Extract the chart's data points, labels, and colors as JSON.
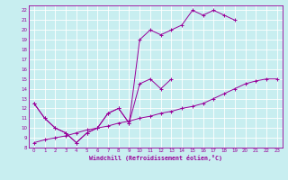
{
  "xlabel": "Windchill (Refroidissement éolien,°C)",
  "bg_color": "#c8eef0",
  "grid_color": "#ffffff",
  "line_color": "#990099",
  "xlim": [
    -0.5,
    23.5
  ],
  "ylim": [
    8,
    22.5
  ],
  "xticks": [
    0,
    1,
    2,
    3,
    4,
    5,
    6,
    7,
    8,
    9,
    10,
    11,
    12,
    13,
    14,
    15,
    16,
    17,
    18,
    19,
    20,
    21,
    22,
    23
  ],
  "yticks": [
    8,
    9,
    10,
    11,
    12,
    13,
    14,
    15,
    16,
    17,
    18,
    19,
    20,
    21,
    22
  ],
  "line1_x": [
    0,
    1,
    2,
    3,
    4,
    5,
    6,
    7,
    8,
    9,
    10,
    11,
    12,
    13,
    14,
    15,
    16,
    17,
    18,
    19
  ],
  "line1_y": [
    12.5,
    11.0,
    10.0,
    9.5,
    8.5,
    9.5,
    10.0,
    11.5,
    12.0,
    10.5,
    19.0,
    20.0,
    19.5,
    20.0,
    20.5,
    22.0,
    21.5,
    22.0,
    21.5,
    21.0
  ],
  "line2_x": [
    0,
    1,
    2,
    3,
    4,
    5,
    6,
    7,
    8,
    9,
    10,
    11,
    12,
    13
  ],
  "line2_y": [
    12.5,
    11.0,
    10.0,
    9.5,
    8.5,
    9.5,
    10.0,
    11.5,
    12.0,
    10.5,
    14.5,
    15.0,
    14.0,
    15.0
  ],
  "line3_x": [
    0,
    1,
    2,
    3,
    4,
    5,
    6,
    7,
    8,
    9,
    10,
    11,
    12,
    13,
    14,
    15,
    16,
    17,
    18,
    19,
    20,
    21,
    22,
    23
  ],
  "line3_y": [
    8.5,
    8.8,
    9.0,
    9.2,
    9.5,
    9.8,
    10.0,
    10.2,
    10.5,
    10.7,
    11.0,
    11.2,
    11.5,
    11.7,
    12.0,
    12.2,
    12.5,
    13.0,
    13.5,
    14.0,
    14.5,
    14.8,
    15.0,
    15.0
  ],
  "marker": "+"
}
